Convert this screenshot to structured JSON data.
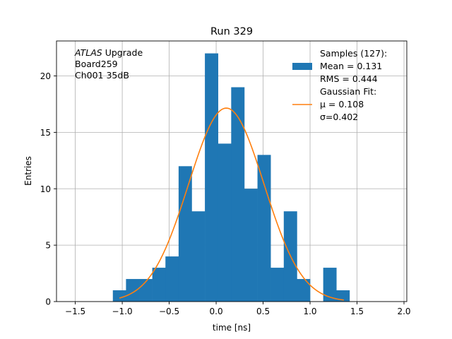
{
  "chart_data": {
    "type": "bar",
    "title": "Run 329",
    "xlabel": "time [ns]",
    "ylabel": "Entries",
    "xlim": [
      -1.7,
      2.03
    ],
    "ylim": [
      0,
      23.1
    ],
    "grid": true,
    "xticks": [
      -1.5,
      -1.0,
      -0.5,
      0.0,
      0.5,
      1.0,
      1.5,
      2.0
    ],
    "xtick_labels": [
      "−1.5",
      "−1.0",
      "−0.5",
      "0.0",
      "0.5",
      "1.0",
      "1.5",
      "2.0"
    ],
    "yticks": [
      0,
      5,
      10,
      15,
      20
    ],
    "ytick_labels": [
      "0",
      "5",
      "10",
      "15",
      "20"
    ],
    "annotation": {
      "lines": [
        {
          "italic": "ATLAS",
          "rest": " Upgrade"
        },
        {
          "italic": "",
          "rest": " Board259"
        },
        {
          "italic": "",
          "rest": " Ch001 35dB"
        }
      ]
    },
    "legend": {
      "placement": "top-right",
      "entries": [
        {
          "kind": "bar",
          "color": "#1f77b4",
          "lines": [
            "Samples (127):",
            " Mean = 0.131",
            " RMS = 0.444"
          ]
        },
        {
          "kind": "line",
          "color": "#ff7f0e",
          "lines": [
            "Gaussian Fit:",
            " μ = 0.108",
            " σ=0.402"
          ]
        }
      ]
    },
    "histogram": {
      "name": "Samples (127)",
      "color": "#1f77b4",
      "bin_edges": [
        -1.1,
        -0.96,
        -0.82,
        -0.68,
        -0.54,
        -0.4,
        -0.26,
        -0.12,
        0.02,
        0.16,
        0.3,
        0.44,
        0.58,
        0.72,
        0.86,
        1.0,
        1.14,
        1.28,
        1.42
      ],
      "counts": [
        1,
        2,
        2,
        3,
        4,
        12,
        8,
        22,
        14,
        19,
        10,
        13,
        3,
        8,
        2,
        0,
        3,
        1
      ]
    },
    "fit": {
      "name": "Gaussian Fit",
      "color": "#ff7f0e",
      "mu": 0.108,
      "sigma": 0.402,
      "amplitude": 17.15,
      "x_range": [
        -1.03,
        1.36
      ]
    }
  }
}
